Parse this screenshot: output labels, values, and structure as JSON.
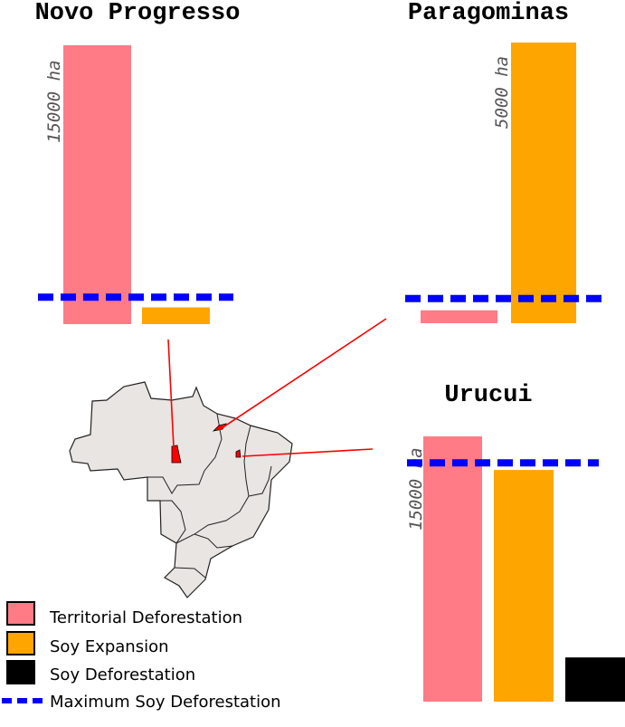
{
  "colors": {
    "territorial_deforestation": "#ff7b85",
    "soy_expansion": "#ffa500",
    "soy_deforestation": "#000000",
    "max_soy_deforestation": "#0000ff",
    "map_fill": "#e8e5e3",
    "connector": "#ff0000"
  },
  "legend": [
    {
      "label": "Territorial Deforestation",
      "key": "territorial_deforestation"
    },
    {
      "label": "Soy Expansion",
      "key": "soy_expansion"
    },
    {
      "label": "Soy Deforestation",
      "key": "soy_deforestation"
    },
    {
      "label": "Maximum Soy Deforestation",
      "key": "max_soy_deforestation"
    }
  ],
  "chart_data": [
    {
      "type": "bar",
      "title": "Novo Progresso",
      "scale_label": "15000 ha",
      "categories": [
        "Territorial Deforestation",
        "Soy Expansion"
      ],
      "values": [
        15000,
        900
      ],
      "max_soy_deforestation": 1450
    },
    {
      "type": "bar",
      "title": "Paragominas",
      "scale_label": "5000 ha",
      "categories": [
        "Territorial Deforestation",
        "Soy Expansion"
      ],
      "values": [
        230,
        5000
      ],
      "max_soy_deforestation": 440
    },
    {
      "type": "bar",
      "title": "Urucui",
      "scale_label": "15000 ha",
      "categories": [
        "Territorial Deforestation",
        "Soy Expansion",
        "Soy Deforestation"
      ],
      "values": [
        15000,
        13100,
        2500
      ],
      "max_soy_deforestation": 13500
    }
  ]
}
